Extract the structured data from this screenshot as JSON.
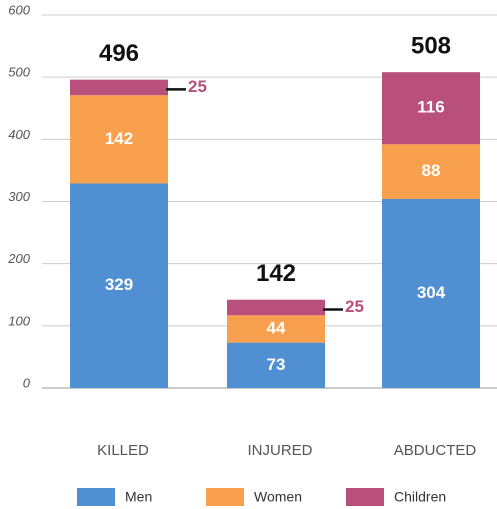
{
  "chart_data": {
    "type": "stacked_bar",
    "categories": [
      "KILLED",
      "INJURED",
      "ABDUCTED"
    ],
    "series": [
      {
        "name": "Men",
        "color": "#4f8fd2",
        "values": [
          329,
          73,
          304
        ]
      },
      {
        "name": "Women",
        "color": "#f9a04e",
        "values": [
          142,
          44,
          88
        ]
      },
      {
        "name": "Children",
        "color": "#b9507c",
        "values": [
          25,
          25,
          116
        ]
      }
    ],
    "totals": [
      496,
      142,
      508
    ],
    "ylim": [
      0,
      600
    ],
    "yticks": [
      0,
      100,
      200,
      300,
      400,
      500,
      600
    ],
    "grid": true,
    "legend": "bottom"
  }
}
